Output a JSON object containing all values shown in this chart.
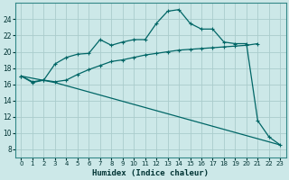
{
  "title": "",
  "xlabel": "Humidex (Indice chaleur)",
  "xlim": [
    -0.5,
    23.5
  ],
  "ylim": [
    7,
    26
  ],
  "yticks": [
    8,
    10,
    12,
    14,
    16,
    18,
    20,
    22,
    24
  ],
  "xticks": [
    0,
    1,
    2,
    3,
    4,
    5,
    6,
    7,
    8,
    9,
    10,
    11,
    12,
    13,
    14,
    15,
    16,
    17,
    18,
    19,
    20,
    21,
    22,
    23
  ],
  "bg_color": "#cce8e8",
  "grid_color": "#aacccc",
  "line_color": "#006666",
  "line1_x": [
    0,
    1,
    2,
    3,
    4,
    5,
    6,
    7,
    8,
    9,
    10,
    11,
    12,
    13,
    14,
    15,
    16,
    17,
    18,
    19,
    20,
    21,
    22,
    23
  ],
  "line1_y": [
    17.0,
    16.2,
    16.5,
    18.5,
    19.3,
    19.7,
    19.8,
    21.5,
    20.8,
    21.2,
    21.5,
    21.5,
    23.5,
    25.0,
    25.2,
    23.5,
    22.8,
    22.8,
    21.2,
    21.0,
    21.0,
    11.5,
    9.5,
    8.5
  ],
  "line2_x": [
    0,
    1,
    2,
    3,
    4,
    5,
    6,
    7,
    8,
    9,
    10,
    11,
    12,
    13,
    14,
    15,
    16,
    17,
    18,
    19,
    20,
    21
  ],
  "line2_y": [
    17.0,
    16.3,
    16.5,
    16.3,
    16.5,
    17.2,
    17.8,
    18.3,
    18.8,
    19.0,
    19.3,
    19.6,
    19.8,
    20.0,
    20.2,
    20.3,
    20.4,
    20.5,
    20.6,
    20.7,
    20.8,
    21.0
  ],
  "line3_x": [
    0,
    3,
    23
  ],
  "line3_y": [
    17.0,
    16.2,
    8.5
  ]
}
